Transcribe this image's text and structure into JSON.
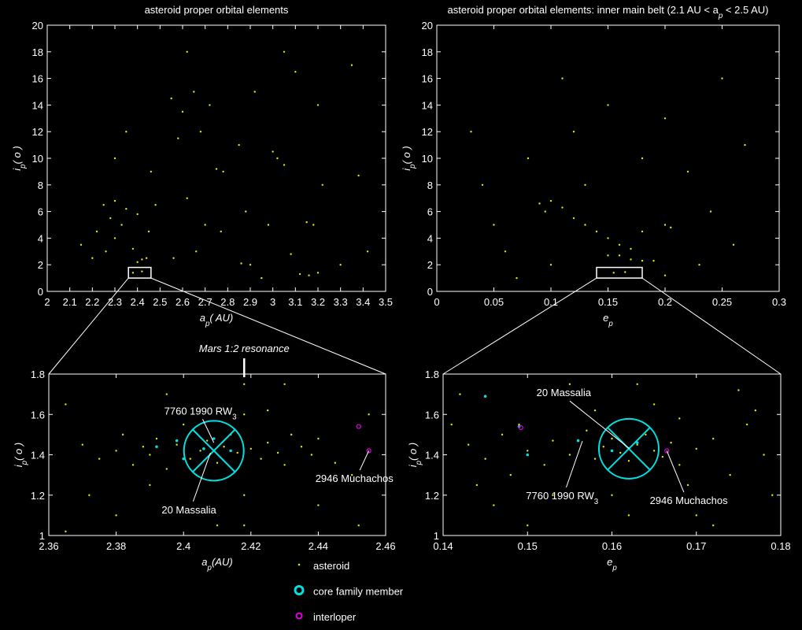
{
  "chart_data": [
    {
      "type": "scatter",
      "title": {
        "main": "asteroid proper orbital elements"
      },
      "xlabel": {
        "main": "a",
        "sub": "p",
        "unit": "( AU)"
      },
      "ylabel": {
        "main": "i",
        "sub": "p",
        "unit": "( o )"
      },
      "xlim": [
        2,
        3.5
      ],
      "xticks": [
        2,
        2.1,
        2.2,
        2.3,
        2.4,
        2.5,
        2.6,
        2.7,
        2.8,
        2.9,
        3,
        3.1,
        3.2,
        3.3,
        3.4,
        3.5
      ],
      "ylim": [
        0,
        20
      ],
      "yticks": [
        0,
        2,
        4,
        6,
        8,
        10,
        12,
        14,
        16,
        18,
        20
      ],
      "series": [
        {
          "color": "#e6e600",
          "marker": "dot",
          "x": [
            2.25,
            2.3,
            2.35,
            2.28,
            2.22,
            2.3,
            2.38,
            2.26,
            2.33,
            2.4,
            2.45,
            2.42,
            2.4,
            2.44,
            2.38,
            2.42,
            2.2,
            2.15,
            2.48,
            2.46,
            2.35,
            2.3,
            2.55,
            2.6,
            2.65,
            2.58,
            2.68,
            2.62,
            2.7,
            2.66,
            2.56,
            2.75,
            2.78,
            2.72,
            2.77,
            2.86,
            2.9,
            2.88,
            2.92,
            2.85,
            3.0,
            3.02,
            3.05,
            2.98,
            3.1,
            3.15,
            3.18,
            3.12,
            3.16,
            3.2,
            3.08,
            3.22,
            3.2,
            3.05,
            2.62,
            3.38,
            3.42,
            3.3,
            2.95,
            3.35
          ],
          "y": [
            6.5,
            6.8,
            6.2,
            5.5,
            4.5,
            4.0,
            3.2,
            3.0,
            5.0,
            5.8,
            4.5,
            2.4,
            2.2,
            2.5,
            1.4,
            1.5,
            2.5,
            3.5,
            6.5,
            9,
            12,
            10,
            14.5,
            13.5,
            15,
            11.5,
            12,
            7,
            5,
            3,
            2.5,
            9.2,
            9,
            14,
            4.5,
            2.1,
            2.0,
            6,
            15,
            11,
            10.5,
            10,
            9.5,
            5,
            16.5,
            5.2,
            5,
            1.3,
            1.2,
            1.4,
            2.8,
            8,
            14,
            18,
            18,
            8.7,
            3,
            2,
            1,
            17
          ]
        }
      ]
    },
    {
      "type": "scatter",
      "title": {
        "main": "asteroid proper orbital elements: inner main belt (2.1 AU < a",
        "sub": "p",
        "rest": " < 2.5 AU)"
      },
      "xlabel": {
        "main": "e",
        "sub": "p"
      },
      "ylabel": {
        "main": "i",
        "sub": "p",
        "unit": "( o )"
      },
      "xlim": [
        0,
        0.3
      ],
      "xticks": [
        0,
        0.05,
        0.1,
        0.15,
        0.2,
        0.25,
        0.3
      ],
      "ylim": [
        0,
        20
      ],
      "yticks": [
        0,
        2,
        4,
        6,
        8,
        10,
        12,
        14,
        16,
        18,
        20
      ],
      "series": [
        {
          "color": "#e6e600",
          "marker": "dot",
          "x": [
            0.09,
            0.1,
            0.11,
            0.095,
            0.12,
            0.13,
            0.14,
            0.15,
            0.16,
            0.17,
            0.15,
            0.16,
            0.18,
            0.19,
            0.17,
            0.155,
            0.165,
            0.2,
            0.205,
            0.18,
            0.06,
            0.05,
            0.04,
            0.08,
            0.12,
            0.15,
            0.2,
            0.22,
            0.24,
            0.23,
            0.26,
            0.1,
            0.07,
            0.13,
            0.18,
            0.27,
            0.03,
            0.11,
            0.25,
            0.2
          ],
          "y": [
            6.6,
            6.8,
            6.3,
            6.0,
            5.5,
            5.0,
            4.5,
            4.0,
            3.5,
            3.2,
            2.7,
            2.7,
            2.3,
            2.3,
            2.4,
            1.4,
            1.45,
            5.0,
            4.8,
            4.5,
            3,
            5,
            8,
            10,
            12,
            14,
            13,
            9,
            6,
            2,
            3.5,
            2,
            1,
            8,
            10,
            11,
            12,
            16,
            16,
            1.2
          ]
        }
      ]
    },
    {
      "type": "scatter",
      "xlabel": {
        "main": "a",
        "sub": "p",
        "unit": "(AU)"
      },
      "ylabel": {
        "main": "i",
        "sub": "p",
        "unit": "( o )"
      },
      "xlim": [
        2.36,
        2.46
      ],
      "xticks": [
        2.36,
        2.38,
        2.4,
        2.42,
        2.44,
        2.46
      ],
      "ylim": [
        1,
        1.8
      ],
      "yticks": [
        1,
        1.2,
        1.4,
        1.6,
        1.8
      ],
      "resonance": {
        "text": "Mars 1:2 resonance",
        "x": 2.418
      },
      "family_circle": {
        "x": 2.409,
        "y": 1.42
      },
      "annotations": [
        {
          "text": "7760 1990 RW",
          "sub": "3",
          "xy": [
            2.409,
            1.46
          ],
          "xytext": [
            2.405,
            1.6
          ]
        },
        {
          "text": "20 Massalia",
          "xy": [
            2.408,
            1.41
          ],
          "xytext": [
            2.4016,
            1.11
          ]
        },
        {
          "text": "2946 Muchachos",
          "xy": [
            2.455,
            1.42
          ],
          "xytext": [
            2.4507,
            1.265
          ]
        }
      ],
      "series": [
        {
          "name": "asteroid",
          "color": "#e6e600",
          "marker": "dot",
          "x": [
            2.37,
            2.375,
            2.38,
            2.382,
            2.385,
            2.388,
            2.39,
            2.392,
            2.395,
            2.398,
            2.4,
            2.402,
            2.405,
            2.407,
            2.41,
            2.412,
            2.414,
            2.416,
            2.418,
            2.418,
            2.418,
            2.418,
            2.42,
            2.423,
            2.425,
            2.428,
            2.43,
            2.432,
            2.435,
            2.438,
            2.44,
            2.445,
            2.45,
            2.455,
            2.365,
            2.372,
            2.38,
            2.395,
            2.41,
            2.43,
            2.44,
            2.452,
            2.39,
            2.425,
            2.365
          ],
          "y": [
            1.45,
            1.38,
            1.42,
            1.5,
            1.35,
            1.44,
            1.4,
            1.48,
            1.33,
            1.45,
            1.55,
            1.38,
            1.42,
            1.47,
            1.36,
            1.44,
            1.5,
            1.41,
            1.2,
            1.6,
            1.05,
            1.75,
            1.43,
            1.38,
            1.46,
            1.41,
            1.35,
            1.5,
            1.44,
            1.4,
            1.48,
            1.36,
            1.3,
            1.6,
            1.65,
            1.2,
            1.1,
            1.7,
            1.05,
            1.75,
            1.15,
            1.05,
            1.25,
            1.62,
            1.02
          ]
        },
        {
          "name": "core family member",
          "color": "#00e0e0",
          "marker": "dot",
          "x": [
            2.392,
            2.398,
            2.406,
            2.409,
            2.414,
            2.4
          ],
          "y": [
            1.44,
            1.47,
            1.43,
            1.48,
            1.42,
            1.38
          ]
        },
        {
          "name": "interloper",
          "color": "#e000e0",
          "marker": "ring",
          "x": [
            2.452,
            2.455
          ],
          "y": [
            1.54,
            1.42
          ]
        }
      ]
    },
    {
      "type": "scatter",
      "xlabel": {
        "main": "e",
        "sub": "p"
      },
      "ylabel": {
        "main": "i",
        "sub": "p",
        "unit": "( o )"
      },
      "xlim": [
        0.14,
        0.18
      ],
      "xticks": [
        0.14,
        0.15,
        0.16,
        0.17,
        0.18
      ],
      "ylim": [
        1,
        1.8
      ],
      "yticks": [
        1,
        1.2,
        1.4,
        1.6,
        1.8
      ],
      "family_circle": {
        "x": 0.162,
        "y": 1.43
      },
      "annotations": [
        {
          "text": "20 Massalia",
          "xy": [
            0.1621,
            1.43
          ],
          "xytext": [
            0.1543,
            1.69
          ]
        },
        {
          "text": "7760 1990 RW",
          "sub": "3",
          "xy": [
            0.1565,
            1.468
          ],
          "xytext": [
            0.1541,
            1.18
          ]
        },
        {
          "text": "2946 Muchachos",
          "xy": [
            0.1665,
            1.42
          ],
          "xytext": [
            0.1691,
            1.156
          ]
        }
      ],
      "series": [
        {
          "color": "#e6e600",
          "marker": "dot",
          "x": [
            0.143,
            0.145,
            0.147,
            0.149,
            0.15,
            0.152,
            0.153,
            0.155,
            0.157,
            0.158,
            0.159,
            0.16,
            0.161,
            0.162,
            0.163,
            0.164,
            0.165,
            0.166,
            0.167,
            0.168,
            0.17,
            0.172,
            0.174,
            0.176,
            0.178,
            0.142,
            0.146,
            0.15,
            0.155,
            0.16,
            0.165,
            0.17,
            0.175,
            0.179,
            0.144,
            0.158,
            0.168,
            0.172,
            0.148,
            0.162,
            0.177,
            0.153,
            0.141,
            0.163,
            0.169
          ],
          "y": [
            1.45,
            1.38,
            1.5,
            1.55,
            1.42,
            1.35,
            1.47,
            1.4,
            1.52,
            1.38,
            1.44,
            1.48,
            1.41,
            1.37,
            1.45,
            1.5,
            1.42,
            1.39,
            1.46,
            1.35,
            1.43,
            1.48,
            1.3,
            1.55,
            1.4,
            1.7,
            1.15,
            1.05,
            1.75,
            1.2,
            1.65,
            1.1,
            1.72,
            1.2,
            1.25,
            1.62,
            1.58,
            1.05,
            1.3,
            1.1,
            1.62,
            1.2,
            1.55,
            1.75,
            1.25
          ]
        },
        {
          "color": "#00e0e0",
          "marker": "dot",
          "x": [
            0.149,
            0.156,
            0.16,
            0.163,
            0.15,
            0.145
          ],
          "y": [
            1.54,
            1.47,
            1.42,
            1.46,
            1.4,
            1.69
          ]
        },
        {
          "color": "#e000e0",
          "marker": "ring",
          "x": [
            0.1492,
            0.1665
          ],
          "y": [
            1.535,
            1.42
          ]
        }
      ]
    }
  ]
}
